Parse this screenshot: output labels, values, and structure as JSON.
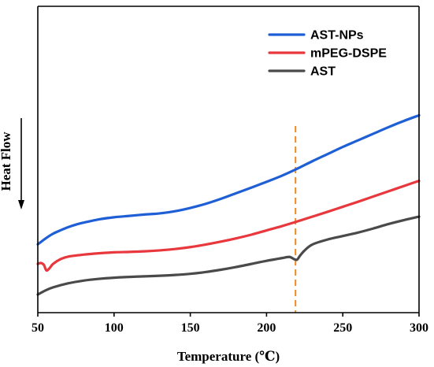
{
  "chart_data": {
    "type": "line",
    "title": "",
    "xlabel": "Temperature (℃)",
    "ylabel": "Heat Flow",
    "xlim": [
      50,
      300
    ],
    "ylim": [
      0,
      100
    ],
    "xticks": [
      50,
      100,
      150,
      200,
      250,
      300
    ],
    "xtick_labels": [
      "50",
      "100",
      "150",
      "200",
      "250",
      "300"
    ],
    "yticks_shown": false,
    "grid": false,
    "legend_position": "top-right",
    "ylabel_arrow": "down",
    "reference_line": {
      "x": 219,
      "style": "dashed",
      "color": "#f08a1c"
    },
    "series": [
      {
        "name": "AST-NPs",
        "color": "#1f5fd6",
        "x": [
          50,
          55,
          60,
          65,
          70,
          75,
          80,
          90,
          100,
          110,
          120,
          130,
          140,
          150,
          160,
          170,
          180,
          190,
          200,
          210,
          220,
          230,
          240,
          250,
          260,
          270,
          280,
          290,
          300
        ],
        "y": [
          25.9,
          28.9,
          31.4,
          33.2,
          34.8,
          36.1,
          37.1,
          38.8,
          39.9,
          40.6,
          41.3,
          41.9,
          43.0,
          44.7,
          46.8,
          49.4,
          52.3,
          55.2,
          58.2,
          61.3,
          64.9,
          68.8,
          72.5,
          76.2,
          79.6,
          83.0,
          86.4,
          89.6,
          92.5
        ]
      },
      {
        "name": "mPEG-DSPE",
        "color": "#e8383d",
        "x": [
          50,
          52,
          54,
          55,
          56,
          58,
          60,
          65,
          70,
          80,
          90,
          100,
          110,
          120,
          130,
          140,
          150,
          160,
          170,
          180,
          190,
          200,
          210,
          220,
          230,
          240,
          250,
          260,
          270,
          280,
          290,
          300
        ],
        "y": [
          15.8,
          16.3,
          15.3,
          13.3,
          12.4,
          13.9,
          15.8,
          18.3,
          19.6,
          20.6,
          21.3,
          21.8,
          22.0,
          22.3,
          22.8,
          23.5,
          24.5,
          25.8,
          27.3,
          29.0,
          30.9,
          33.1,
          35.3,
          37.7,
          40.2,
          42.7,
          45.3,
          47.9,
          50.6,
          53.3,
          56.0,
          58.7
        ]
      },
      {
        "name": "AST",
        "color": "#4a4a4a",
        "x": [
          50,
          55,
          60,
          70,
          80,
          90,
          100,
          110,
          120,
          130,
          140,
          150,
          160,
          170,
          180,
          190,
          200,
          210,
          215,
          218,
          220,
          222,
          225,
          230,
          240,
          250,
          260,
          270,
          280,
          290,
          300
        ],
        "y": [
          0.0,
          2.1,
          3.7,
          5.8,
          7.2,
          8.1,
          8.7,
          9.1,
          9.4,
          9.7,
          10.1,
          10.7,
          11.6,
          12.8,
          14.2,
          15.8,
          17.4,
          18.8,
          19.4,
          18.3,
          18.0,
          20.1,
          22.8,
          25.8,
          28.4,
          30.2,
          32.0,
          34.1,
          36.4,
          38.4,
          40.2
        ]
      }
    ]
  }
}
